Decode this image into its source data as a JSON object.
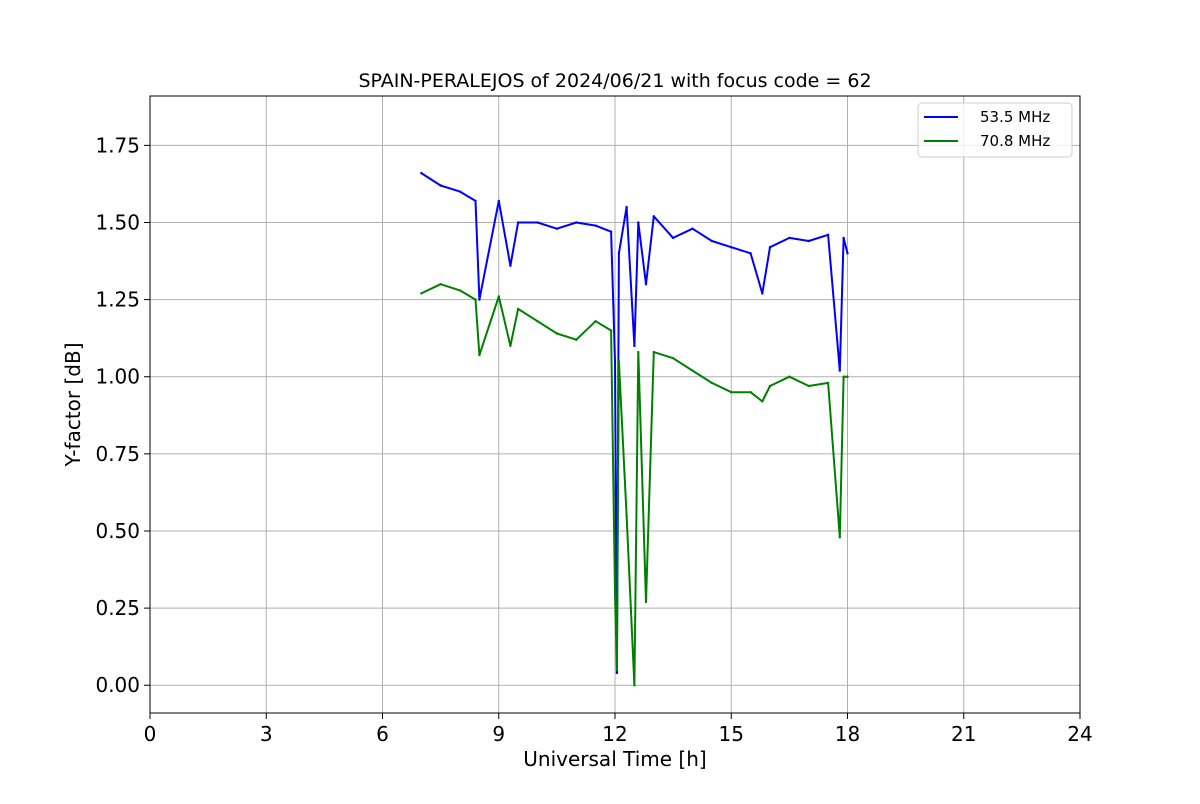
{
  "chart_data": {
    "type": "line",
    "title": "SPAIN-PERALEJOS of 2024/06/21 with focus code = 62",
    "xlabel": "Universal Time [h]",
    "ylabel": "Y-factor [dB]",
    "xlim": [
      0,
      24
    ],
    "ylim": [
      -0.09,
      1.91
    ],
    "xticks": [
      0,
      3,
      6,
      9,
      12,
      15,
      18,
      21,
      24
    ],
    "xtick_labels": [
      "0",
      "3",
      "6",
      "9",
      "12",
      "15",
      "18",
      "21",
      "24"
    ],
    "yticks": [
      0.0,
      0.25,
      0.5,
      0.75,
      1.0,
      1.25,
      1.5,
      1.75
    ],
    "ytick_labels": [
      "0.00",
      "0.25",
      "0.50",
      "0.75",
      "1.00",
      "1.25",
      "1.50",
      "1.75"
    ],
    "grid": true,
    "legend_position": "top-right",
    "series": [
      {
        "name": "53.5 MHz",
        "color": "#0000ff",
        "x": [
          7.0,
          7.5,
          8.0,
          8.4,
          8.5,
          9.0,
          9.3,
          9.5,
          10.0,
          10.5,
          11.0,
          11.5,
          11.9,
          12.0,
          12.05,
          12.1,
          12.3,
          12.5,
          12.6,
          12.8,
          13.0,
          13.5,
          14.0,
          14.5,
          15.0,
          15.5,
          15.8,
          16.0,
          16.5,
          17.0,
          17.5,
          17.8,
          17.9,
          18.0
        ],
        "y": [
          1.66,
          1.62,
          1.6,
          1.57,
          1.25,
          1.57,
          1.36,
          1.5,
          1.5,
          1.48,
          1.5,
          1.49,
          1.47,
          1.05,
          0.04,
          1.4,
          1.55,
          1.1,
          1.5,
          1.3,
          1.52,
          1.45,
          1.48,
          1.44,
          1.42,
          1.4,
          1.27,
          1.42,
          1.45,
          1.44,
          1.46,
          1.02,
          1.45,
          1.4
        ]
      },
      {
        "name": "70.8 MHz",
        "color": "#008000",
        "x": [
          7.0,
          7.5,
          8.0,
          8.4,
          8.5,
          9.0,
          9.3,
          9.5,
          10.0,
          10.5,
          11.0,
          11.5,
          11.9,
          12.0,
          12.05,
          12.1,
          12.3,
          12.5,
          12.6,
          12.8,
          13.0,
          13.5,
          14.0,
          14.5,
          15.0,
          15.5,
          15.8,
          16.0,
          16.5,
          17.0,
          17.5,
          17.8,
          17.9,
          18.0
        ],
        "y": [
          1.27,
          1.3,
          1.28,
          1.25,
          1.07,
          1.26,
          1.1,
          1.22,
          1.18,
          1.14,
          1.12,
          1.18,
          1.15,
          0.3,
          0.05,
          1.05,
          0.55,
          0.0,
          1.08,
          0.27,
          1.08,
          1.06,
          1.02,
          0.98,
          0.95,
          0.95,
          0.92,
          0.97,
          1.0,
          0.97,
          0.98,
          0.48,
          1.0,
          1.0
        ]
      }
    ]
  }
}
